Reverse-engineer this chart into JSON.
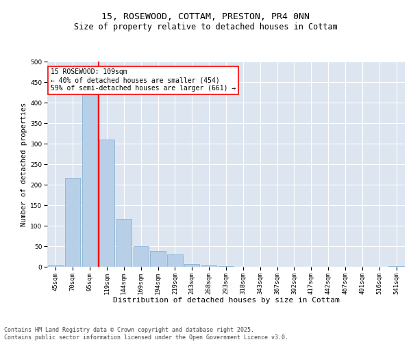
{
  "title": "15, ROSEWOOD, COTTAM, PRESTON, PR4 0NN",
  "subtitle": "Size of property relative to detached houses in Cottam",
  "xlabel": "Distribution of detached houses by size in Cottam",
  "ylabel": "Number of detached properties",
  "categories": [
    "45sqm",
    "70sqm",
    "95sqm",
    "119sqm",
    "144sqm",
    "169sqm",
    "194sqm",
    "219sqm",
    "243sqm",
    "268sqm",
    "293sqm",
    "318sqm",
    "343sqm",
    "367sqm",
    "392sqm",
    "417sqm",
    "442sqm",
    "467sqm",
    "491sqm",
    "516sqm",
    "541sqm"
  ],
  "values": [
    3,
    216,
    420,
    310,
    116,
    50,
    38,
    30,
    6,
    3,
    1,
    0,
    0,
    0,
    0,
    0,
    0,
    0,
    0,
    0,
    1
  ],
  "bar_color": "#b8cfe8",
  "bar_edgecolor": "#7aaace",
  "redline_index": 2.5,
  "annotation_text": "15 ROSEWOOD: 109sqm\n← 40% of detached houses are smaller (454)\n59% of semi-detached houses are larger (661) →",
  "annotation_box_facecolor": "white",
  "annotation_box_edgecolor": "red",
  "redline_color": "red",
  "background_color": "#dde6f0",
  "grid_color": "white",
  "ylim": [
    0,
    500
  ],
  "yticks": [
    0,
    50,
    100,
    150,
    200,
    250,
    300,
    350,
    400,
    450,
    500
  ],
  "footnote": "Contains HM Land Registry data © Crown copyright and database right 2025.\nContains public sector information licensed under the Open Government Licence v3.0.",
  "title_fontsize": 9.5,
  "subtitle_fontsize": 8.5,
  "xlabel_fontsize": 8,
  "ylabel_fontsize": 7.5,
  "tick_fontsize": 6.5,
  "annotation_fontsize": 7,
  "footnote_fontsize": 6
}
